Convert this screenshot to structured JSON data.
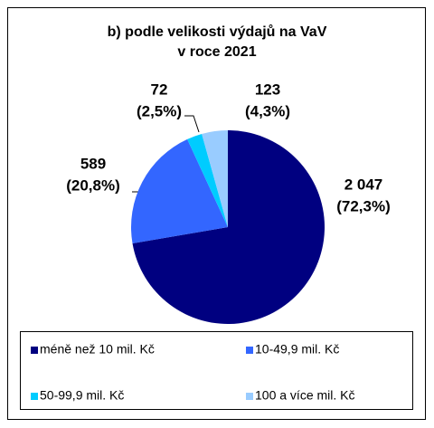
{
  "chart_data": {
    "type": "pie",
    "title": "b) podle velikosti výdajů na VaV",
    "subtitle": "v roce 2021",
    "categories": [
      "méně než 10 mil. Kč",
      "10-49,9 mil. Kč",
      "50-99,9 mil. Kč",
      "100 a více mil. Kč"
    ],
    "values": [
      2047,
      589,
      72,
      123
    ],
    "value_labels": [
      "2 047",
      "589",
      "72",
      "123"
    ],
    "percents": [
      72.3,
      20.8,
      2.5,
      4.3
    ],
    "percent_labels": [
      "(72,3%)",
      "(20,8%)",
      "(2,5%)",
      "(4,3%)"
    ],
    "colors": [
      "#000080",
      "#3366ff",
      "#00ccff",
      "#99ccff"
    ]
  }
}
